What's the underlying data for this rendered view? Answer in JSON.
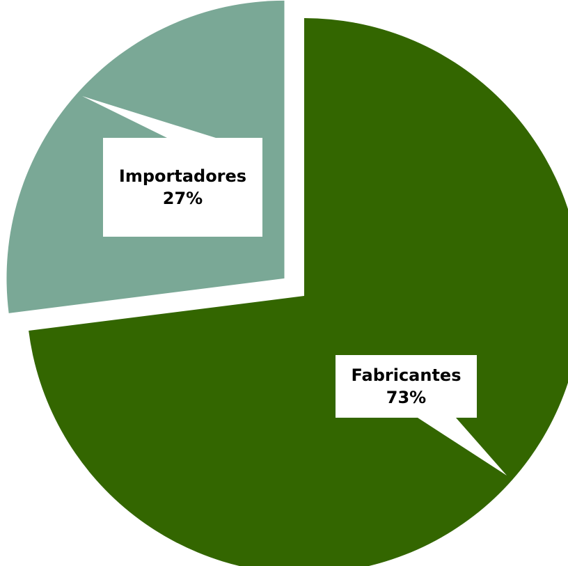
{
  "chart_data": {
    "type": "pie",
    "categories": [
      "Fabricantes",
      "Importadores"
    ],
    "values": [
      73,
      27
    ],
    "value_labels": [
      "73%",
      "27%"
    ],
    "colors": [
      "#336600",
      "#7aa896"
    ],
    "exploded": [
      false,
      true
    ]
  }
}
